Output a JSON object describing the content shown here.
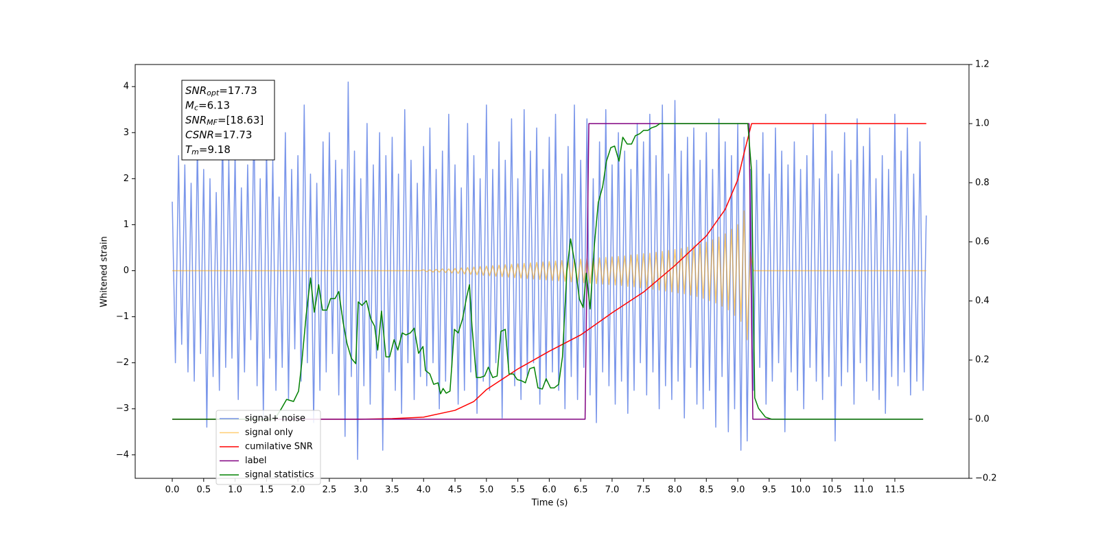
{
  "chart_data": {
    "type": "line",
    "xlabel": "Time (s)",
    "ylabel": "Whitened strain",
    "xlim": [
      -0.59,
      12.68
    ],
    "ylim": [
      -4.51,
      4.48
    ],
    "y2lim": [
      -0.2,
      1.2
    ],
    "xticks": [
      {
        "value": 0,
        "label": "0.0"
      },
      0.5,
      {
        "value": 1,
        "label": "1.0"
      },
      1.5,
      {
        "value": 2,
        "label": "2.0"
      },
      2.5,
      {
        "value": 3,
        "label": "3.0"
      },
      3.5,
      {
        "value": 4,
        "label": "4.0"
      },
      4.5,
      {
        "value": 5,
        "label": "5.0"
      },
      5.5,
      {
        "value": 6,
        "label": "6.0"
      },
      6.5,
      {
        "value": 7,
        "label": "7.0"
      },
      7.5,
      {
        "value": 8,
        "label": "8.0"
      },
      8.5,
      {
        "value": 9,
        "label": "9.0"
      },
      9.5,
      {
        "value": 10,
        "label": "10.0"
      },
      10.5,
      {
        "value": 11,
        "label": "11.0"
      },
      11.5
    ],
    "yticks": [
      {
        "value": -4,
        "label": "−4"
      },
      {
        "value": -3,
        "label": "−3"
      },
      {
        "value": -2,
        "label": "−2"
      },
      {
        "value": -1,
        "label": "−1"
      },
      0,
      1,
      2,
      3,
      4
    ],
    "y2ticks": [
      {
        "value": -0.2,
        "label": "−0.2"
      },
      {
        "value": 0,
        "label": "0.0"
      },
      0.2,
      0.4,
      0.6,
      0.8,
      {
        "value": 1,
        "label": "1.0"
      },
      1.2
    ],
    "grid": false,
    "legend": "lower left",
    "annotations": [
      {
        "symbol": "SNR",
        "subscript": "opt",
        "text": "=17.73"
      },
      {
        "symbol": "M",
        "subscript": "c",
        "text": "=6.13"
      },
      {
        "symbol": "SNR",
        "subscript": "MF",
        "text": "=[18.63]"
      },
      {
        "symbol": "CSNR",
        "text": "=17.73"
      },
      {
        "symbol": "T",
        "subscript": "m",
        "text": "=9.18"
      }
    ],
    "x": [
      0,
      0.05,
      0.1,
      0.15,
      0.2,
      0.25,
      0.3,
      0.35,
      0.4,
      0.45,
      0.5,
      0.55,
      0.6,
      0.65,
      0.7,
      0.75,
      0.8,
      0.85,
      0.9,
      0.95,
      1,
      1.05,
      1.1,
      1.15,
      1.2,
      1.25,
      1.3,
      1.35,
      1.4,
      1.45,
      1.5,
      1.55,
      1.6,
      1.65,
      1.7,
      1.75,
      1.8,
      1.85,
      1.9,
      1.95,
      2,
      2.05,
      2.1,
      2.15,
      2.2,
      2.25,
      2.3,
      2.35,
      2.4,
      2.45,
      2.5,
      2.55,
      2.6,
      2.65,
      2.7,
      2.75,
      2.8,
      2.85,
      2.9,
      2.95,
      3,
      3.05,
      3.1,
      3.15,
      3.2,
      3.25,
      3.3,
      3.35,
      3.4,
      3.45,
      3.5,
      3.55,
      3.6,
      3.65,
      3.7,
      3.75,
      3.8,
      3.85,
      3.9,
      3.95,
      4,
      4.05,
      4.1,
      4.15,
      4.2,
      4.25,
      4.3,
      4.35,
      4.4,
      4.45,
      4.5,
      4.55,
      4.6,
      4.65,
      4.7,
      4.75,
      4.8,
      4.85,
      4.9,
      4.95,
      5,
      5.05,
      5.1,
      5.15,
      5.2,
      5.25,
      5.3,
      5.35,
      5.4,
      5.45,
      5.5,
      5.55,
      5.6,
      5.65,
      5.7,
      5.75,
      5.8,
      5.85,
      5.9,
      5.95,
      6,
      6.05,
      6.1,
      6.15,
      6.2,
      6.25,
      6.3,
      6.35,
      6.4,
      6.45,
      6.5,
      6.55,
      6.6,
      6.65,
      6.7,
      6.75,
      6.8,
      6.85,
      6.9,
      6.95,
      7,
      7.05,
      7.1,
      7.15,
      7.2,
      7.25,
      7.3,
      7.35,
      7.4,
      7.45,
      7.5,
      7.55,
      7.6,
      7.65,
      7.7,
      7.75,
      7.8,
      7.85,
      7.9,
      7.95,
      8,
      8.05,
      8.1,
      8.15,
      8.2,
      8.25,
      8.3,
      8.35,
      8.4,
      8.45,
      8.5,
      8.55,
      8.6,
      8.65,
      8.7,
      8.75,
      8.8,
      8.85,
      8.9,
      8.95,
      9,
      9.05,
      9.1,
      9.15,
      9.2,
      9.25,
      9.3,
      9.35,
      9.4,
      9.45,
      9.5,
      9.55,
      9.6,
      9.65,
      9.7,
      9.75,
      9.8,
      9.85,
      9.9,
      9.95,
      10,
      10.05,
      10.1,
      10.15,
      10.2,
      10.25,
      10.3,
      10.35,
      10.4,
      10.45,
      10.5,
      10.55,
      10.6,
      10.65,
      10.7,
      10.75,
      10.8,
      10.85,
      10.9,
      10.95,
      11,
      11.05,
      11.1,
      11.15,
      11.2,
      11.25,
      11.3,
      11.35,
      11.4,
      11.45,
      11.5,
      11.55,
      11.6,
      11.65,
      11.7,
      11.75,
      11.8,
      11.85,
      11.9,
      11.95,
      12
    ],
    "series": [
      {
        "name": "signal+ noise",
        "color": "royalblue",
        "alpha": 0.7,
        "values": [
          1.5,
          -2.0,
          2.5,
          -1.6,
          2.3,
          -2.2,
          1.9,
          -2.4,
          2.8,
          -1.8,
          2.2,
          -3.4,
          2.0,
          -2.3,
          1.7,
          -2.6,
          3.1,
          -2.1,
          2.4,
          -1.9,
          2.6,
          -2.8,
          1.8,
          -2.2,
          2.3,
          -1.5,
          3.3,
          -2.5,
          2.0,
          -3.2,
          2.7,
          -1.9,
          2.4,
          -2.6,
          1.6,
          -2.1,
          3.0,
          -2.8,
          2.2,
          -1.7,
          2.5,
          -2.4,
          3.6,
          -2.0,
          2.1,
          -3.3,
          1.9,
          -2.6,
          2.8,
          -2.2,
          3.0,
          -1.8,
          2.4,
          -2.7,
          2.2,
          -3.6,
          4.1,
          -2.3,
          2.6,
          -4.1,
          2.0,
          -2.5,
          3.2,
          -2.9,
          2.3,
          -1.9,
          3.0,
          -3.9,
          2.5,
          -2.2,
          2.9,
          -2.6,
          2.1,
          -3.1,
          3.5,
          -2.0,
          2.4,
          -2.8,
          1.9,
          -2.3,
          2.7,
          -2.5,
          3.1,
          -2.0,
          2.2,
          -3.0,
          2.6,
          -2.4,
          3.4,
          -2.1,
          2.3,
          -2.9,
          1.8,
          -2.6,
          3.2,
          -2.2,
          2.5,
          -3.1,
          2.0,
          -2.4,
          3.6,
          -2.6,
          2.2,
          -2.0,
          2.8,
          -3.2,
          2.4,
          -2.1,
          3.3,
          -2.5,
          2.0,
          -2.8,
          3.5,
          -2.3,
          2.6,
          -2.0,
          3.1,
          -2.9,
          2.2,
          -2.4,
          2.9,
          -2.2,
          3.4,
          -2.6,
          2.1,
          -3.0,
          2.7,
          -2.3,
          3.6,
          -2.8,
          2.4,
          -2.1,
          3.3,
          -2.7,
          2.0,
          -3.3,
          2.8,
          -2.2,
          3.5,
          -2.5,
          2.3,
          -2.9,
          3.0,
          -2.4,
          2.6,
          -3.1,
          2.2,
          -2.6,
          3.2,
          -2.0,
          2.8,
          -2.7,
          3.4,
          -2.2,
          2.5,
          -3.0,
          3.6,
          -2.5,
          2.1,
          -2.8,
          3.7,
          -2.4,
          2.6,
          -3.2,
          2.9,
          -2.1,
          3.1,
          -2.9,
          2.4,
          -3.0,
          3.0,
          -2.6,
          2.2,
          -3.4,
          3.3,
          -2.3,
          2.8,
          -3.5,
          2.5,
          -3.0,
          3.2,
          -3.9,
          2.9,
          -3.7,
          2.2,
          -2.6,
          2.4,
          -2.1,
          3.0,
          -2.9,
          2.1,
          -2.4,
          3.1,
          -2.0,
          2.6,
          -3.5,
          2.3,
          -2.2,
          2.8,
          -2.6,
          2.2,
          -3.0,
          2.5,
          -2.1,
          3.2,
          -2.4,
          2.0,
          -2.8,
          3.4,
          -2.3,
          2.6,
          -3.7,
          2.1,
          -2.5,
          3.0,
          -2.2,
          2.4,
          -2.9,
          3.3,
          -2.0,
          2.7,
          -2.4,
          3.1,
          -2.6,
          2.0,
          -2.8,
          2.5,
          -3.1,
          2.2,
          -2.3,
          3.4,
          -2.5,
          2.6,
          -2.2,
          3.1,
          -2.7,
          2.1,
          -2.4,
          2.8,
          -2.6,
          1.2
        ]
      },
      {
        "name": "signal only",
        "color": "orange",
        "alpha": 0.55,
        "values": [
          0,
          0,
          0,
          0,
          0,
          0,
          0,
          0,
          0,
          0,
          0,
          0,
          0,
          0,
          0,
          0,
          0,
          0,
          0,
          0,
          0,
          0,
          0,
          0,
          0,
          0,
          0,
          0,
          0,
          0,
          0,
          0,
          0,
          0,
          0,
          0,
          0,
          0,
          0,
          0,
          0,
          0,
          0,
          0,
          0,
          0,
          0,
          0,
          0,
          0,
          0,
          0,
          0,
          0,
          0,
          0,
          0,
          0,
          0,
          0,
          0,
          0,
          0,
          0,
          0,
          0,
          0,
          0,
          0,
          0,
          0,
          0,
          0,
          0,
          0,
          0,
          0,
          0,
          0,
          0,
          0.02,
          -0.02,
          0.02,
          -0.03,
          0.03,
          -0.03,
          0.04,
          -0.04,
          0.04,
          -0.05,
          0.05,
          -0.06,
          0.06,
          -0.07,
          0.07,
          -0.08,
          0.08,
          -0.09,
          0.09,
          -0.1,
          0.1,
          -0.11,
          0.11,
          -0.12,
          0.12,
          -0.13,
          0.13,
          -0.14,
          0.14,
          -0.15,
          0.15,
          -0.16,
          0.16,
          -0.17,
          0.17,
          -0.18,
          0.18,
          -0.19,
          0.19,
          -0.2,
          0.2,
          -0.21,
          0.21,
          -0.22,
          0.22,
          -0.23,
          0.23,
          -0.24,
          0.24,
          -0.25,
          0.25,
          -0.26,
          0.26,
          -0.27,
          0.27,
          -0.28,
          0.28,
          -0.29,
          0.29,
          -0.3,
          0.3,
          -0.31,
          0.31,
          -0.32,
          0.32,
          -0.34,
          0.34,
          -0.35,
          0.35,
          -0.37,
          0.37,
          -0.38,
          0.38,
          -0.4,
          0.4,
          -0.42,
          0.42,
          -0.44,
          0.44,
          -0.46,
          0.46,
          -0.48,
          0.48,
          -0.5,
          0.51,
          -0.53,
          0.54,
          -0.56,
          0.58,
          -0.6,
          0.62,
          -0.65,
          0.67,
          -0.7,
          0.73,
          -0.77,
          0.8,
          -0.85,
          0.9,
          -0.97,
          1.0,
          -1.1,
          1.3,
          -1.5,
          0.4,
          0,
          0,
          0,
          0,
          0,
          0,
          0,
          0,
          0,
          0,
          0,
          0,
          0,
          0,
          0,
          0,
          0,
          0,
          0,
          0,
          0,
          0,
          0,
          0,
          0,
          0,
          0,
          0,
          0,
          0,
          0,
          0,
          0,
          0,
          0,
          0,
          0,
          0,
          0,
          0,
          0,
          0,
          0,
          0,
          0,
          0,
          0,
          0,
          0,
          0,
          0,
          0,
          0,
          0,
          0,
          0
        ]
      },
      {
        "name": "cumilative SNR",
        "color": "red",
        "axis": "y2",
        "x": [
          0,
          3.0,
          3.5,
          4.0,
          4.5,
          4.8,
          5.0,
          5.5,
          6.0,
          6.5,
          7.0,
          7.5,
          8.0,
          8.5,
          8.8,
          9.0,
          9.1,
          9.22,
          12.0
        ],
        "values": [
          0,
          0,
          0.002,
          0.007,
          0.03,
          0.06,
          0.1,
          0.17,
          0.23,
          0.285,
          0.36,
          0.43,
          0.52,
          0.62,
          0.71,
          0.81,
          0.9,
          1.0,
          1.0
        ]
      },
      {
        "name": "label",
        "color": "purple",
        "axis": "y2",
        "x": [
          0,
          6.57,
          6.63,
          9.18,
          9.24,
          11.95
        ],
        "values": [
          0,
          0,
          1,
          1,
          0,
          0
        ]
      },
      {
        "name": "signal statistics",
        "color": "green",
        "axis": "y2",
        "x": [
          0,
          1.63,
          1.74,
          1.82,
          1.93,
          2.01,
          2.06,
          2.13,
          2.2,
          2.26,
          2.33,
          2.39,
          2.46,
          2.52,
          2.59,
          2.65,
          2.72,
          2.78,
          2.85,
          2.92,
          2.96,
          3.02,
          3.09,
          3.16,
          3.22,
          3.27,
          3.33,
          3.4,
          3.46,
          3.53,
          3.59,
          3.66,
          3.72,
          3.79,
          3.85,
          3.92,
          3.99,
          4.03,
          4.1,
          4.16,
          4.23,
          4.27,
          4.31,
          4.36,
          4.42,
          4.49,
          4.55,
          4.62,
          4.68,
          4.73,
          4.77,
          4.84,
          4.9,
          4.97,
          5.03,
          5.1,
          5.17,
          5.23,
          5.3,
          5.36,
          5.43,
          5.49,
          5.56,
          5.62,
          5.69,
          5.76,
          5.82,
          5.89,
          5.95,
          6.02,
          6.08,
          6.15,
          6.21,
          6.28,
          6.34,
          6.41,
          6.48,
          6.54,
          6.59,
          6.65,
          6.72,
          6.78,
          6.85,
          6.91,
          6.98,
          7.04,
          7.11,
          7.17,
          7.24,
          7.31,
          7.37,
          7.44,
          7.5,
          7.57,
          7.63,
          7.7,
          7.76,
          9.16,
          9.22,
          9.27,
          9.33,
          9.44,
          9.54,
          11.95
        ],
        "values": [
          0,
          0,
          0.037,
          0.067,
          0.06,
          0.095,
          0.188,
          0.35,
          0.478,
          0.362,
          0.455,
          0.369,
          0.369,
          0.408,
          0.408,
          0.432,
          0.327,
          0.257,
          0.206,
          0.188,
          0.397,
          0.385,
          0.401,
          0.339,
          0.315,
          0.234,
          0.366,
          0.211,
          0.211,
          0.269,
          0.234,
          0.292,
          0.285,
          0.292,
          0.308,
          0.223,
          0.246,
          0.165,
          0.153,
          0.118,
          0.123,
          0.086,
          0.104,
          0.088,
          0.095,
          0.304,
          0.292,
          0.339,
          0.408,
          0.455,
          0.315,
          0.141,
          0.141,
          0.146,
          0.176,
          0.141,
          0.146,
          0.297,
          0.304,
          0.153,
          0.153,
          0.134,
          0.13,
          0.123,
          0.171,
          0.176,
          0.106,
          0.102,
          0.137,
          0.106,
          0.106,
          0.118,
          0.211,
          0.501,
          0.61,
          0.524,
          0.406,
          0.378,
          0.494,
          0.373,
          0.594,
          0.733,
          0.787,
          0.873,
          0.919,
          0.924,
          0.873,
          0.954,
          0.931,
          0.931,
          0.959,
          0.966,
          0.977,
          0.977,
          0.986,
          0.991,
          1.0,
          1.0,
          0.838,
          0.072,
          0.037,
          0.007,
          0,
          0
        ]
      }
    ]
  }
}
